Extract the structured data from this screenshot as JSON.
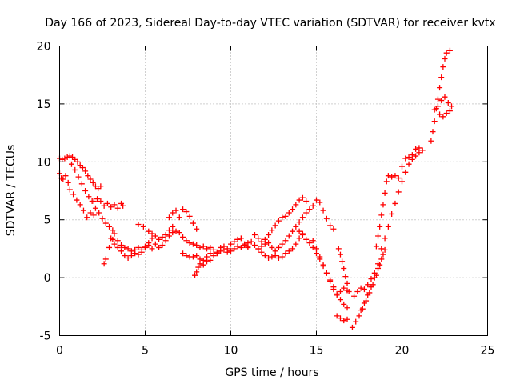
{
  "chart_data": {
    "type": "scatter",
    "title": "Day 166 of 2023, Sidereal Day-to-day VTEC variation (SDTVAR) for receiver kvtx",
    "xlabel": "GPS time / hours",
    "ylabel": "SDTVAR / TECUs",
    "xlim": [
      0,
      25
    ],
    "ylim": [
      -5,
      20
    ],
    "xticks": [
      0,
      5,
      10,
      15,
      20,
      25
    ],
    "yticks": [
      -5,
      0,
      5,
      10,
      15,
      20
    ],
    "grid": true,
    "marker": "plus",
    "color": "#ff0000",
    "series": [
      {
        "points": [
          [
            0.0,
            9.0
          ],
          [
            0.1,
            8.6
          ],
          [
            0.2,
            8.5
          ],
          [
            0.35,
            8.8
          ],
          [
            0.5,
            8.2
          ],
          [
            0.6,
            7.6
          ],
          [
            0.8,
            7.2
          ],
          [
            1.0,
            6.7
          ],
          [
            1.2,
            6.3
          ],
          [
            1.4,
            5.8
          ],
          [
            1.6,
            5.2
          ],
          [
            1.8,
            5.6
          ],
          [
            2.0,
            5.4
          ],
          [
            0.0,
            10.3
          ],
          [
            0.15,
            10.2
          ],
          [
            0.3,
            10.3
          ],
          [
            0.45,
            10.4
          ],
          [
            0.6,
            10.5
          ],
          [
            0.75,
            10.4
          ],
          [
            0.9,
            10.2
          ],
          [
            1.05,
            10.0
          ],
          [
            1.2,
            9.7
          ],
          [
            1.35,
            9.5
          ],
          [
            1.5,
            9.2
          ],
          [
            1.65,
            8.8
          ],
          [
            1.8,
            8.5
          ],
          [
            1.95,
            8.2
          ],
          [
            2.1,
            7.9
          ],
          [
            2.25,
            7.7
          ],
          [
            2.4,
            7.9
          ],
          [
            0.7,
            9.8
          ],
          [
            0.9,
            9.3
          ],
          [
            1.1,
            8.7
          ],
          [
            1.3,
            8.1
          ],
          [
            1.5,
            7.5
          ],
          [
            1.7,
            7.0
          ],
          [
            1.9,
            6.6
          ],
          [
            2.1,
            6.0
          ],
          [
            2.3,
            5.6
          ],
          [
            2.5,
            5.1
          ],
          [
            2.7,
            4.7
          ],
          [
            2.9,
            4.4
          ],
          [
            3.1,
            4.1
          ],
          [
            2.0,
            6.6
          ],
          [
            2.2,
            6.8
          ],
          [
            2.4,
            6.6
          ],
          [
            2.6,
            6.2
          ],
          [
            2.8,
            6.4
          ],
          [
            3.0,
            6.1
          ],
          [
            3.2,
            6.3
          ],
          [
            3.4,
            6.0
          ],
          [
            3.6,
            6.4
          ],
          [
            3.7,
            6.2
          ],
          [
            2.6,
            1.2
          ],
          [
            2.7,
            1.6
          ],
          [
            2.9,
            2.6
          ],
          [
            3.1,
            3.3
          ],
          [
            3.2,
            3.8
          ],
          [
            3.4,
            3.2
          ],
          [
            3.6,
            2.8
          ],
          [
            3.8,
            2.6
          ],
          [
            4.0,
            2.5
          ],
          [
            4.2,
            2.3
          ],
          [
            4.4,
            2.4
          ],
          [
            4.6,
            2.6
          ],
          [
            4.8,
            2.2
          ],
          [
            5.0,
            2.6
          ],
          [
            5.2,
            2.8
          ],
          [
            5.4,
            2.5
          ],
          [
            5.6,
            2.9
          ],
          [
            5.8,
            2.6
          ],
          [
            6.0,
            2.8
          ],
          [
            6.2,
            3.2
          ],
          [
            6.4,
            3.6
          ],
          [
            6.6,
            3.9
          ],
          [
            6.8,
            4.0
          ],
          [
            3.0,
            3.4
          ],
          [
            3.2,
            2.9
          ],
          [
            3.4,
            2.6
          ],
          [
            3.6,
            2.3
          ],
          [
            3.8,
            1.9
          ],
          [
            4.0,
            1.7
          ],
          [
            4.2,
            1.9
          ],
          [
            4.4,
            2.1
          ],
          [
            4.6,
            2.0
          ],
          [
            4.8,
            2.4
          ],
          [
            5.0,
            2.7
          ],
          [
            5.2,
            3.0
          ],
          [
            5.4,
            3.4
          ],
          [
            5.6,
            3.6
          ],
          [
            5.8,
            3.3
          ],
          [
            6.0,
            3.5
          ],
          [
            6.2,
            3.7
          ],
          [
            6.4,
            4.1
          ],
          [
            6.6,
            4.4
          ],
          [
            4.6,
            4.6
          ],
          [
            4.9,
            4.4
          ],
          [
            5.2,
            4.0
          ],
          [
            5.4,
            3.8
          ],
          [
            6.4,
            5.2
          ],
          [
            6.6,
            5.6
          ],
          [
            6.8,
            5.8
          ],
          [
            7.0,
            5.2
          ],
          [
            7.2,
            5.9
          ],
          [
            7.4,
            5.7
          ],
          [
            7.6,
            5.3
          ],
          [
            7.8,
            4.7
          ],
          [
            8.0,
            4.2
          ],
          [
            7.0,
            3.9
          ],
          [
            7.2,
            3.5
          ],
          [
            7.4,
            3.2
          ],
          [
            7.6,
            3.0
          ],
          [
            7.8,
            2.9
          ],
          [
            8.0,
            2.8
          ],
          [
            8.2,
            2.6
          ],
          [
            8.4,
            2.7
          ],
          [
            8.6,
            2.5
          ],
          [
            8.8,
            2.6
          ],
          [
            7.2,
            2.1
          ],
          [
            7.4,
            1.9
          ],
          [
            7.6,
            1.8
          ],
          [
            7.8,
            1.8
          ],
          [
            8.0,
            1.9
          ],
          [
            8.2,
            1.6
          ],
          [
            8.4,
            1.5
          ],
          [
            8.6,
            1.8
          ],
          [
            8.8,
            2.1
          ],
          [
            9.0,
            2.4
          ],
          [
            9.2,
            2.2
          ],
          [
            9.4,
            2.6
          ],
          [
            9.6,
            2.7
          ],
          [
            9.8,
            2.5
          ],
          [
            10.0,
            2.9
          ],
          [
            10.2,
            3.1
          ],
          [
            10.4,
            3.3
          ],
          [
            10.6,
            3.4
          ],
          [
            10.8,
            2.9
          ],
          [
            11.0,
            2.6
          ],
          [
            7.9,
            0.2
          ],
          [
            8.0,
            0.5
          ],
          [
            8.1,
            0.9
          ],
          [
            8.2,
            1.2
          ],
          [
            8.4,
            1.1
          ],
          [
            8.6,
            1.4
          ],
          [
            8.8,
            1.5
          ],
          [
            9.0,
            1.9
          ],
          [
            9.2,
            2.1
          ],
          [
            9.4,
            2.3
          ],
          [
            9.6,
            2.4
          ],
          [
            9.8,
            2.2
          ],
          [
            10.0,
            2.3
          ],
          [
            10.2,
            2.5
          ],
          [
            10.4,
            2.7
          ],
          [
            10.6,
            2.6
          ],
          [
            10.8,
            2.8
          ],
          [
            11.0,
            3.0
          ],
          [
            11.0,
            2.7
          ],
          [
            11.2,
            3.1
          ],
          [
            11.4,
            2.8
          ],
          [
            11.6,
            2.5
          ],
          [
            11.8,
            2.2
          ],
          [
            12.0,
            1.9
          ],
          [
            12.2,
            1.7
          ],
          [
            12.4,
            1.8
          ],
          [
            12.6,
            1.9
          ],
          [
            12.8,
            1.7
          ],
          [
            13.0,
            1.8
          ],
          [
            13.2,
            2.1
          ],
          [
            13.4,
            2.3
          ],
          [
            13.6,
            2.5
          ],
          [
            13.8,
            2.9
          ],
          [
            14.0,
            3.4
          ],
          [
            14.2,
            3.8
          ],
          [
            11.4,
            3.7
          ],
          [
            11.6,
            3.4
          ],
          [
            11.8,
            3.1
          ],
          [
            12.0,
            3.3
          ],
          [
            12.2,
            3.7
          ],
          [
            12.4,
            4.1
          ],
          [
            12.6,
            4.5
          ],
          [
            12.8,
            4.9
          ],
          [
            13.0,
            5.2
          ],
          [
            13.2,
            5.3
          ],
          [
            13.4,
            5.6
          ],
          [
            13.6,
            5.9
          ],
          [
            13.8,
            6.3
          ],
          [
            14.0,
            6.7
          ],
          [
            14.2,
            6.9
          ],
          [
            14.4,
            6.6
          ],
          [
            11.6,
            2.4
          ],
          [
            11.8,
            2.7
          ],
          [
            12.0,
            2.9
          ],
          [
            12.2,
            3.0
          ],
          [
            12.4,
            2.6
          ],
          [
            12.6,
            2.3
          ],
          [
            12.8,
            2.6
          ],
          [
            13.0,
            2.9
          ],
          [
            13.2,
            3.2
          ],
          [
            13.4,
            3.6
          ],
          [
            13.6,
            4.0
          ],
          [
            13.8,
            4.4
          ],
          [
            14.0,
            4.8
          ],
          [
            14.2,
            5.2
          ],
          [
            14.4,
            5.6
          ],
          [
            14.6,
            5.9
          ],
          [
            14.8,
            6.2
          ],
          [
            15.0,
            6.7
          ],
          [
            15.2,
            6.5
          ],
          [
            15.4,
            5.8
          ],
          [
            15.6,
            5.1
          ],
          [
            15.8,
            4.5
          ],
          [
            16.0,
            4.2
          ],
          [
            14.0,
            4.0
          ],
          [
            14.2,
            3.7
          ],
          [
            14.4,
            3.3
          ],
          [
            14.6,
            3.0
          ],
          [
            14.8,
            2.6
          ],
          [
            15.0,
            2.1
          ],
          [
            15.2,
            1.6
          ],
          [
            15.4,
            1.0
          ],
          [
            15.6,
            0.4
          ],
          [
            15.8,
            -0.2
          ],
          [
            16.0,
            -0.8
          ],
          [
            16.2,
            -1.4
          ],
          [
            16.4,
            -1.9
          ],
          [
            16.6,
            -2.3
          ],
          [
            16.8,
            -2.6
          ],
          [
            14.8,
            3.2
          ],
          [
            15.0,
            2.5
          ],
          [
            15.2,
            1.8
          ],
          [
            15.4,
            1.1
          ],
          [
            15.6,
            0.4
          ],
          [
            15.8,
            -0.3
          ],
          [
            16.0,
            -1.0
          ],
          [
            16.2,
            -1.5
          ],
          [
            16.4,
            -1.2
          ],
          [
            16.6,
            -0.9
          ],
          [
            16.8,
            -1.1
          ],
          [
            16.2,
            -3.3
          ],
          [
            16.4,
            -3.5
          ],
          [
            16.6,
            -3.7
          ],
          [
            16.8,
            -3.6
          ],
          [
            16.3,
            2.5
          ],
          [
            16.4,
            2.0
          ],
          [
            16.5,
            1.4
          ],
          [
            16.6,
            0.8
          ],
          [
            16.7,
            0.1
          ],
          [
            16.8,
            -0.5
          ],
          [
            16.9,
            -1.2
          ],
          [
            17.1,
            -4.3
          ],
          [
            17.3,
            -3.8
          ],
          [
            17.5,
            -3.3
          ],
          [
            17.7,
            -2.7
          ],
          [
            17.9,
            -2.0
          ],
          [
            18.1,
            -1.3
          ],
          [
            18.3,
            -0.6
          ],
          [
            18.5,
            0.2
          ],
          [
            18.7,
            1.1
          ],
          [
            18.9,
            2.0
          ],
          [
            17.2,
            -1.6
          ],
          [
            17.4,
            -1.2
          ],
          [
            17.6,
            -0.9
          ],
          [
            17.8,
            -1.0
          ],
          [
            18.0,
            -0.6
          ],
          [
            18.2,
            -0.1
          ],
          [
            18.4,
            0.4
          ],
          [
            18.6,
            1.2
          ],
          [
            17.6,
            -2.8
          ],
          [
            17.8,
            -2.2
          ],
          [
            18.0,
            -1.5
          ],
          [
            18.2,
            -0.8
          ],
          [
            18.4,
            0.0
          ],
          [
            18.6,
            0.8
          ],
          [
            18.8,
            1.6
          ],
          [
            19.0,
            2.4
          ],
          [
            18.5,
            2.7
          ],
          [
            18.6,
            3.6
          ],
          [
            18.7,
            4.4
          ],
          [
            18.8,
            5.4
          ],
          [
            18.9,
            6.3
          ],
          [
            19.0,
            7.3
          ],
          [
            19.1,
            8.3
          ],
          [
            19.2,
            8.8
          ],
          [
            18.8,
            2.5
          ],
          [
            19.0,
            3.4
          ],
          [
            19.2,
            4.4
          ],
          [
            19.4,
            5.5
          ],
          [
            19.6,
            6.4
          ],
          [
            19.8,
            7.4
          ],
          [
            20.0,
            8.3
          ],
          [
            20.2,
            9.1
          ],
          [
            20.4,
            9.8
          ],
          [
            20.6,
            10.2
          ],
          [
            20.8,
            10.5
          ],
          [
            21.0,
            10.8
          ],
          [
            21.2,
            11.0
          ],
          [
            19.4,
            8.7
          ],
          [
            19.6,
            8.8
          ],
          [
            19.8,
            8.6
          ],
          [
            20.0,
            9.6
          ],
          [
            20.2,
            10.3
          ],
          [
            20.4,
            10.4
          ],
          [
            20.6,
            10.6
          ],
          [
            20.8,
            11.1
          ],
          [
            21.0,
            11.2
          ],
          [
            21.7,
            11.8
          ],
          [
            21.8,
            12.6
          ],
          [
            21.9,
            13.5
          ],
          [
            22.0,
            14.6
          ],
          [
            22.1,
            15.4
          ],
          [
            22.2,
            16.4
          ],
          [
            22.3,
            17.3
          ],
          [
            22.4,
            18.2
          ],
          [
            22.5,
            18.9
          ],
          [
            22.6,
            19.4
          ],
          [
            22.8,
            19.6
          ],
          [
            21.9,
            14.5
          ],
          [
            22.1,
            14.8
          ],
          [
            22.3,
            15.3
          ],
          [
            22.5,
            15.6
          ],
          [
            22.7,
            15.1
          ],
          [
            22.9,
            14.8
          ],
          [
            22.6,
            14.2
          ],
          [
            22.8,
            14.4
          ],
          [
            22.4,
            13.9
          ],
          [
            22.2,
            14.1
          ]
        ]
      }
    ]
  }
}
